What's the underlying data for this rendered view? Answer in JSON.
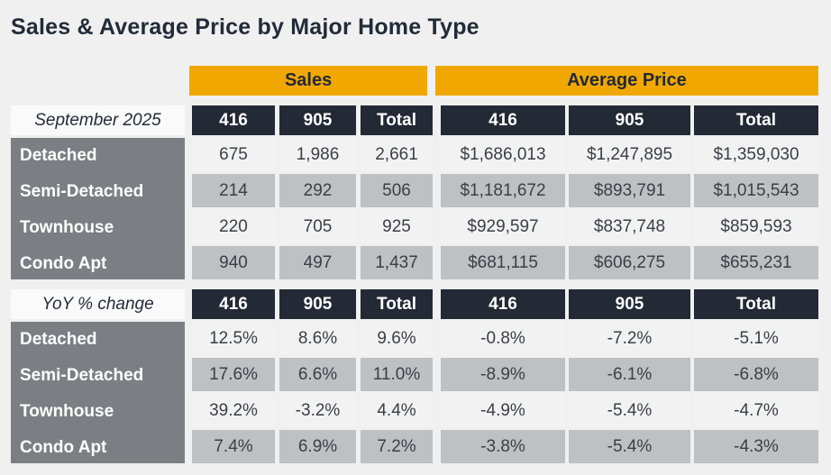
{
  "chart_data": {
    "type": "table",
    "title": "Sales & Average Price by Major Home Type",
    "column_groups": [
      "Sales",
      "Average Price"
    ],
    "columns": [
      "416",
      "905",
      "Total",
      "416",
      "905",
      "Total"
    ],
    "sections": [
      {
        "label": "September 2025",
        "rows": [
          {
            "label": "Detached",
            "values": [
              "675",
              "1,986",
              "2,661",
              "$1,686,013",
              "$1,247,895",
              "$1,359,030"
            ]
          },
          {
            "label": "Semi-Detached",
            "values": [
              "214",
              "292",
              "506",
              "$1,181,672",
              "$893,791",
              "$1,015,543"
            ]
          },
          {
            "label": "Townhouse",
            "values": [
              "220",
              "705",
              "925",
              "$929,597",
              "$837,748",
              "$859,593"
            ]
          },
          {
            "label": "Condo Apt",
            "values": [
              "940",
              "497",
              "1,437",
              "$681,115",
              "$606,275",
              "$655,231"
            ]
          }
        ]
      },
      {
        "label": "YoY % change",
        "rows": [
          {
            "label": "Detached",
            "values": [
              "12.5%",
              "8.6%",
              "9.6%",
              "-0.8%",
              "-7.2%",
              "-5.1%"
            ]
          },
          {
            "label": "Semi-Detached",
            "values": [
              "17.6%",
              "6.6%",
              "11.0%",
              "-8.9%",
              "-6.1%",
              "-6.8%"
            ]
          },
          {
            "label": "Townhouse",
            "values": [
              "39.2%",
              "-3.2%",
              "4.4%",
              "-4.9%",
              "-5.4%",
              "-4.7%"
            ]
          },
          {
            "label": "Condo Apt",
            "values": [
              "7.4%",
              "6.9%",
              "7.2%",
              "-3.8%",
              "-5.4%",
              "-4.3%"
            ]
          }
        ]
      }
    ],
    "colors": {
      "accent_gold": "#f0a800",
      "header_dark": "#232935",
      "label_gray": "#7b7f84",
      "row_light": "#f2f2f3",
      "row_shade": "#bfc0c2",
      "background": "#f0f0f1"
    }
  }
}
